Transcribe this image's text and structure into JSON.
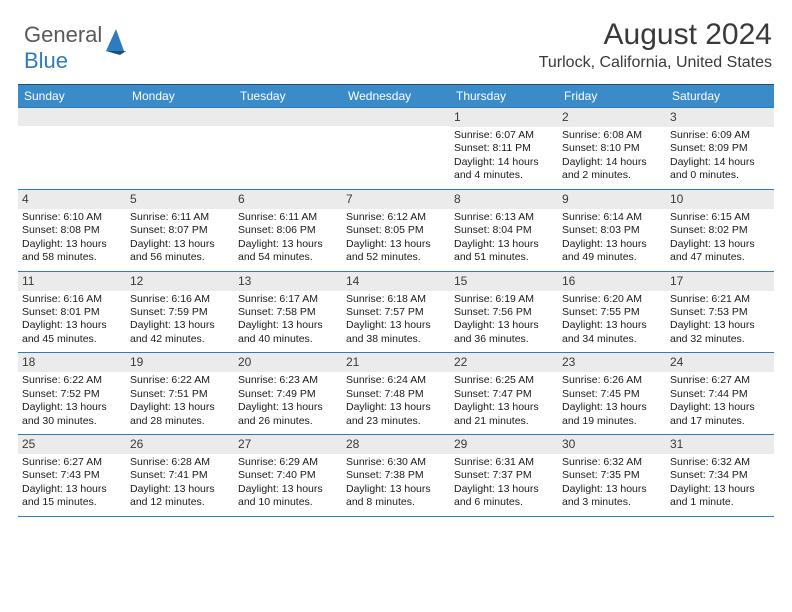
{
  "logo": {
    "text_gray": "General",
    "text_blue": "Blue"
  },
  "title": {
    "month": "August 2024",
    "location": "Turlock, California, United States"
  },
  "style": {
    "headerBg": "#3b8bc9",
    "headerText": "#ffffff",
    "dayNumBg": "#ebebeb",
    "borderColor": "#2f7bbf",
    "bodyFontSize": 10.5,
    "headerFontSize": 12,
    "titleFontSize": 30,
    "locationFontSize": 16
  },
  "dayHeaders": [
    "Sunday",
    "Monday",
    "Tuesday",
    "Wednesday",
    "Thursday",
    "Friday",
    "Saturday"
  ],
  "grid": [
    [
      null,
      null,
      null,
      null,
      {
        "n": "1",
        "sr": "Sunrise: 6:07 AM",
        "ss": "Sunset: 8:11 PM",
        "dl1": "Daylight: 14 hours",
        "dl2": "and 4 minutes."
      },
      {
        "n": "2",
        "sr": "Sunrise: 6:08 AM",
        "ss": "Sunset: 8:10 PM",
        "dl1": "Daylight: 14 hours",
        "dl2": "and 2 minutes."
      },
      {
        "n": "3",
        "sr": "Sunrise: 6:09 AM",
        "ss": "Sunset: 8:09 PM",
        "dl1": "Daylight: 14 hours",
        "dl2": "and 0 minutes."
      }
    ],
    [
      {
        "n": "4",
        "sr": "Sunrise: 6:10 AM",
        "ss": "Sunset: 8:08 PM",
        "dl1": "Daylight: 13 hours",
        "dl2": "and 58 minutes."
      },
      {
        "n": "5",
        "sr": "Sunrise: 6:11 AM",
        "ss": "Sunset: 8:07 PM",
        "dl1": "Daylight: 13 hours",
        "dl2": "and 56 minutes."
      },
      {
        "n": "6",
        "sr": "Sunrise: 6:11 AM",
        "ss": "Sunset: 8:06 PM",
        "dl1": "Daylight: 13 hours",
        "dl2": "and 54 minutes."
      },
      {
        "n": "7",
        "sr": "Sunrise: 6:12 AM",
        "ss": "Sunset: 8:05 PM",
        "dl1": "Daylight: 13 hours",
        "dl2": "and 52 minutes."
      },
      {
        "n": "8",
        "sr": "Sunrise: 6:13 AM",
        "ss": "Sunset: 8:04 PM",
        "dl1": "Daylight: 13 hours",
        "dl2": "and 51 minutes."
      },
      {
        "n": "9",
        "sr": "Sunrise: 6:14 AM",
        "ss": "Sunset: 8:03 PM",
        "dl1": "Daylight: 13 hours",
        "dl2": "and 49 minutes."
      },
      {
        "n": "10",
        "sr": "Sunrise: 6:15 AM",
        "ss": "Sunset: 8:02 PM",
        "dl1": "Daylight: 13 hours",
        "dl2": "and 47 minutes."
      }
    ],
    [
      {
        "n": "11",
        "sr": "Sunrise: 6:16 AM",
        "ss": "Sunset: 8:01 PM",
        "dl1": "Daylight: 13 hours",
        "dl2": "and 45 minutes."
      },
      {
        "n": "12",
        "sr": "Sunrise: 6:16 AM",
        "ss": "Sunset: 7:59 PM",
        "dl1": "Daylight: 13 hours",
        "dl2": "and 42 minutes."
      },
      {
        "n": "13",
        "sr": "Sunrise: 6:17 AM",
        "ss": "Sunset: 7:58 PM",
        "dl1": "Daylight: 13 hours",
        "dl2": "and 40 minutes."
      },
      {
        "n": "14",
        "sr": "Sunrise: 6:18 AM",
        "ss": "Sunset: 7:57 PM",
        "dl1": "Daylight: 13 hours",
        "dl2": "and 38 minutes."
      },
      {
        "n": "15",
        "sr": "Sunrise: 6:19 AM",
        "ss": "Sunset: 7:56 PM",
        "dl1": "Daylight: 13 hours",
        "dl2": "and 36 minutes."
      },
      {
        "n": "16",
        "sr": "Sunrise: 6:20 AM",
        "ss": "Sunset: 7:55 PM",
        "dl1": "Daylight: 13 hours",
        "dl2": "and 34 minutes."
      },
      {
        "n": "17",
        "sr": "Sunrise: 6:21 AM",
        "ss": "Sunset: 7:53 PM",
        "dl1": "Daylight: 13 hours",
        "dl2": "and 32 minutes."
      }
    ],
    [
      {
        "n": "18",
        "sr": "Sunrise: 6:22 AM",
        "ss": "Sunset: 7:52 PM",
        "dl1": "Daylight: 13 hours",
        "dl2": "and 30 minutes."
      },
      {
        "n": "19",
        "sr": "Sunrise: 6:22 AM",
        "ss": "Sunset: 7:51 PM",
        "dl1": "Daylight: 13 hours",
        "dl2": "and 28 minutes."
      },
      {
        "n": "20",
        "sr": "Sunrise: 6:23 AM",
        "ss": "Sunset: 7:49 PM",
        "dl1": "Daylight: 13 hours",
        "dl2": "and 26 minutes."
      },
      {
        "n": "21",
        "sr": "Sunrise: 6:24 AM",
        "ss": "Sunset: 7:48 PM",
        "dl1": "Daylight: 13 hours",
        "dl2": "and 23 minutes."
      },
      {
        "n": "22",
        "sr": "Sunrise: 6:25 AM",
        "ss": "Sunset: 7:47 PM",
        "dl1": "Daylight: 13 hours",
        "dl2": "and 21 minutes."
      },
      {
        "n": "23",
        "sr": "Sunrise: 6:26 AM",
        "ss": "Sunset: 7:45 PM",
        "dl1": "Daylight: 13 hours",
        "dl2": "and 19 minutes."
      },
      {
        "n": "24",
        "sr": "Sunrise: 6:27 AM",
        "ss": "Sunset: 7:44 PM",
        "dl1": "Daylight: 13 hours",
        "dl2": "and 17 minutes."
      }
    ],
    [
      {
        "n": "25",
        "sr": "Sunrise: 6:27 AM",
        "ss": "Sunset: 7:43 PM",
        "dl1": "Daylight: 13 hours",
        "dl2": "and 15 minutes."
      },
      {
        "n": "26",
        "sr": "Sunrise: 6:28 AM",
        "ss": "Sunset: 7:41 PM",
        "dl1": "Daylight: 13 hours",
        "dl2": "and 12 minutes."
      },
      {
        "n": "27",
        "sr": "Sunrise: 6:29 AM",
        "ss": "Sunset: 7:40 PM",
        "dl1": "Daylight: 13 hours",
        "dl2": "and 10 minutes."
      },
      {
        "n": "28",
        "sr": "Sunrise: 6:30 AM",
        "ss": "Sunset: 7:38 PM",
        "dl1": "Daylight: 13 hours",
        "dl2": "and 8 minutes."
      },
      {
        "n": "29",
        "sr": "Sunrise: 6:31 AM",
        "ss": "Sunset: 7:37 PM",
        "dl1": "Daylight: 13 hours",
        "dl2": "and 6 minutes."
      },
      {
        "n": "30",
        "sr": "Sunrise: 6:32 AM",
        "ss": "Sunset: 7:35 PM",
        "dl1": "Daylight: 13 hours",
        "dl2": "and 3 minutes."
      },
      {
        "n": "31",
        "sr": "Sunrise: 6:32 AM",
        "ss": "Sunset: 7:34 PM",
        "dl1": "Daylight: 13 hours",
        "dl2": "and 1 minute."
      }
    ]
  ]
}
